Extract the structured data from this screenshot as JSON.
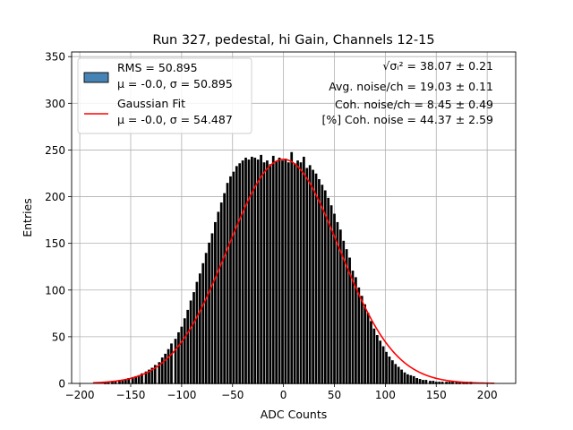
{
  "chart_data": {
    "type": "bar",
    "title": "Run 327, pedestal, hi Gain, Channels 12-15",
    "xlabel": "ADC Counts",
    "ylabel": "Entries",
    "xlim": [
      -208,
      228
    ],
    "ylim": [
      0,
      355
    ],
    "xticks": [
      -200,
      -150,
      -100,
      -50,
      0,
      50,
      100,
      150,
      200
    ],
    "xtick_labels": [
      "−200",
      "−150",
      "−100",
      "−50",
      "0",
      "50",
      "100",
      "150",
      "200"
    ],
    "yticks": [
      0,
      50,
      100,
      150,
      200,
      250,
      300,
      350
    ],
    "grid": true,
    "legend_position": "top-left",
    "legend": [
      {
        "label_line1": "RMS = 50.895",
        "label_line2": "μ = -0.0, σ = 50.895",
        "swatch": "patch"
      },
      {
        "label_line1": "Gaussian Fit",
        "label_line2": "μ = -0.0, σ = 54.487",
        "swatch": "line"
      }
    ],
    "annotations": [
      {
        "lead": "√σᵢ²",
        "text": " = 38.07 ± 0.21"
      },
      {
        "text": "Avg. noise/ch = 19.03 ± 0.11"
      },
      {
        "text": "Coh. noise/ch = 8.45 ± 0.49"
      },
      {
        "text": "[%] Coh. noise = 44.37 ± 2.59"
      }
    ],
    "colors": {
      "bar_fill": "#4682b4",
      "bar_edge": "#000000",
      "fit": "#ff0000",
      "grid": "#b0b0b0"
    },
    "histogram": {
      "bin_width": 1,
      "x": [
        -175,
        -172,
        -168,
        -165,
        -161,
        -158,
        -155,
        -152,
        -148,
        -145,
        -142,
        -139,
        -135,
        -132,
        -129,
        -126,
        -122,
        -119,
        -116,
        -113,
        -110,
        -106,
        -103,
        -100,
        -97,
        -94,
        -91,
        -88,
        -85,
        -82,
        -79,
        -76,
        -73,
        -70,
        -67,
        -64,
        -61,
        -58,
        -55,
        -52,
        -49,
        -46,
        -43,
        -40,
        -37,
        -34,
        -31,
        -28,
        -25,
        -22,
        -19,
        -16,
        -13,
        -10,
        -7,
        -4,
        -1,
        2,
        5,
        8,
        11,
        14,
        17,
        20,
        23,
        26,
        29,
        32,
        35,
        38,
        41,
        44,
        47,
        50,
        53,
        56,
        59,
        62,
        65,
        68,
        71,
        74,
        77,
        80,
        83,
        86,
        89,
        92,
        95,
        98,
        101,
        104,
        107,
        110,
        113,
        116,
        119,
        122,
        125,
        128,
        131,
        134,
        137,
        140,
        144,
        147,
        150,
        153,
        156,
        160,
        163,
        166,
        170,
        173,
        177,
        180,
        184
      ],
      "values": [
        1,
        1,
        2,
        2,
        3,
        3,
        4,
        5,
        6,
        7,
        8,
        10,
        12,
        14,
        16,
        19,
        22,
        27,
        31,
        36,
        42,
        47,
        54,
        60,
        69,
        78,
        88,
        97,
        108,
        117,
        128,
        139,
        150,
        160,
        172,
        183,
        193,
        203,
        214,
        221,
        226,
        232,
        235,
        238,
        241,
        239,
        242,
        241,
        239,
        244,
        236,
        238,
        234,
        243,
        237,
        241,
        238,
        240,
        236,
        247,
        235,
        238,
        236,
        242,
        230,
        233,
        228,
        224,
        218,
        212,
        206,
        198,
        190,
        181,
        172,
        164,
        152,
        143,
        134,
        120,
        113,
        102,
        93,
        84,
        75,
        66,
        58,
        51,
        45,
        39,
        33,
        28,
        24,
        20,
        17,
        14,
        11,
        9,
        8,
        7,
        5,
        4,
        3,
        3,
        2,
        2,
        1,
        1,
        1,
        1,
        1,
        1,
        1,
        1,
        1,
        1,
        1
      ]
    },
    "gaussian_fit": {
      "amplitude": 240,
      "mu": 0.0,
      "sigma": 54.487,
      "x_range": [
        -187,
        207
      ]
    }
  }
}
